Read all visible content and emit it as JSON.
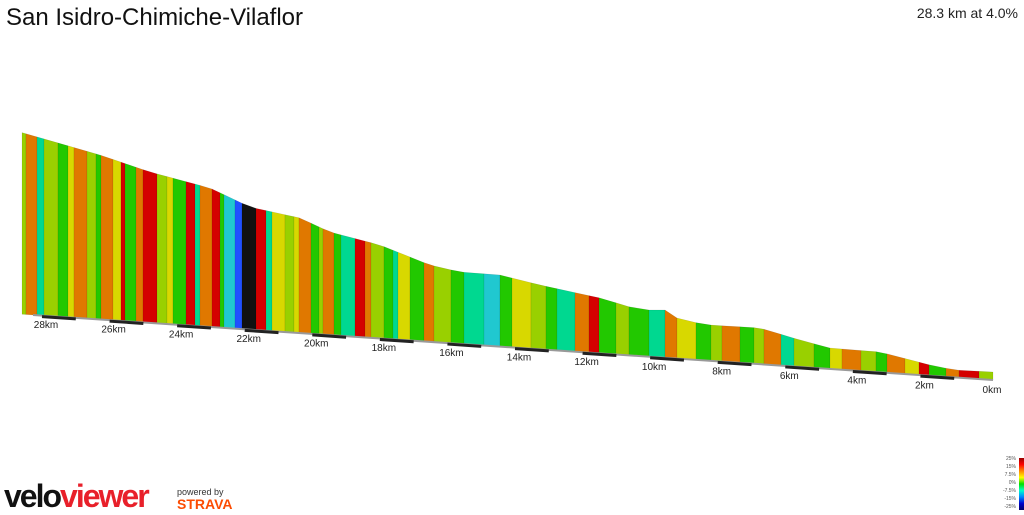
{
  "title": "San Isidro-Chimiche-Vilaflor",
  "summary": "28.3 km at 4.0%",
  "logo": {
    "velo": "velo",
    "viewer": "viewer",
    "powered": "powered by",
    "strava": "STRAVA"
  },
  "legend": [
    "25%",
    "15%",
    "7.5%",
    "0%",
    "-7.5%",
    "-15%",
    "-25%"
  ],
  "colors": {
    "red": "#d40000",
    "orange": "#e07800",
    "yellow": "#d8d800",
    "lime": "#99d000",
    "green": "#22c800",
    "teal": "#00d890",
    "cyan": "#20c8d0",
    "blue": "#2050ff",
    "black": "#111111"
  },
  "chart_data": {
    "type": "area",
    "title": "San Isidro-Chimiche-Vilaflor",
    "x_ticks": [
      "28km",
      "26km",
      "24km",
      "22km",
      "20km",
      "18km",
      "16km",
      "14km",
      "12km",
      "10km",
      "8km",
      "6km",
      "4km",
      "2km",
      "0km"
    ],
    "distance_km": [
      28.3,
      26,
      24,
      22,
      20,
      18,
      16,
      14,
      12,
      10,
      8,
      6,
      4,
      2,
      0
    ],
    "relative_height": [
      1.0,
      0.85,
      0.77,
      0.7,
      0.64,
      0.56,
      0.48,
      0.44,
      0.36,
      0.28,
      0.22,
      0.13,
      0.07,
      0.03,
      0
    ]
  }
}
